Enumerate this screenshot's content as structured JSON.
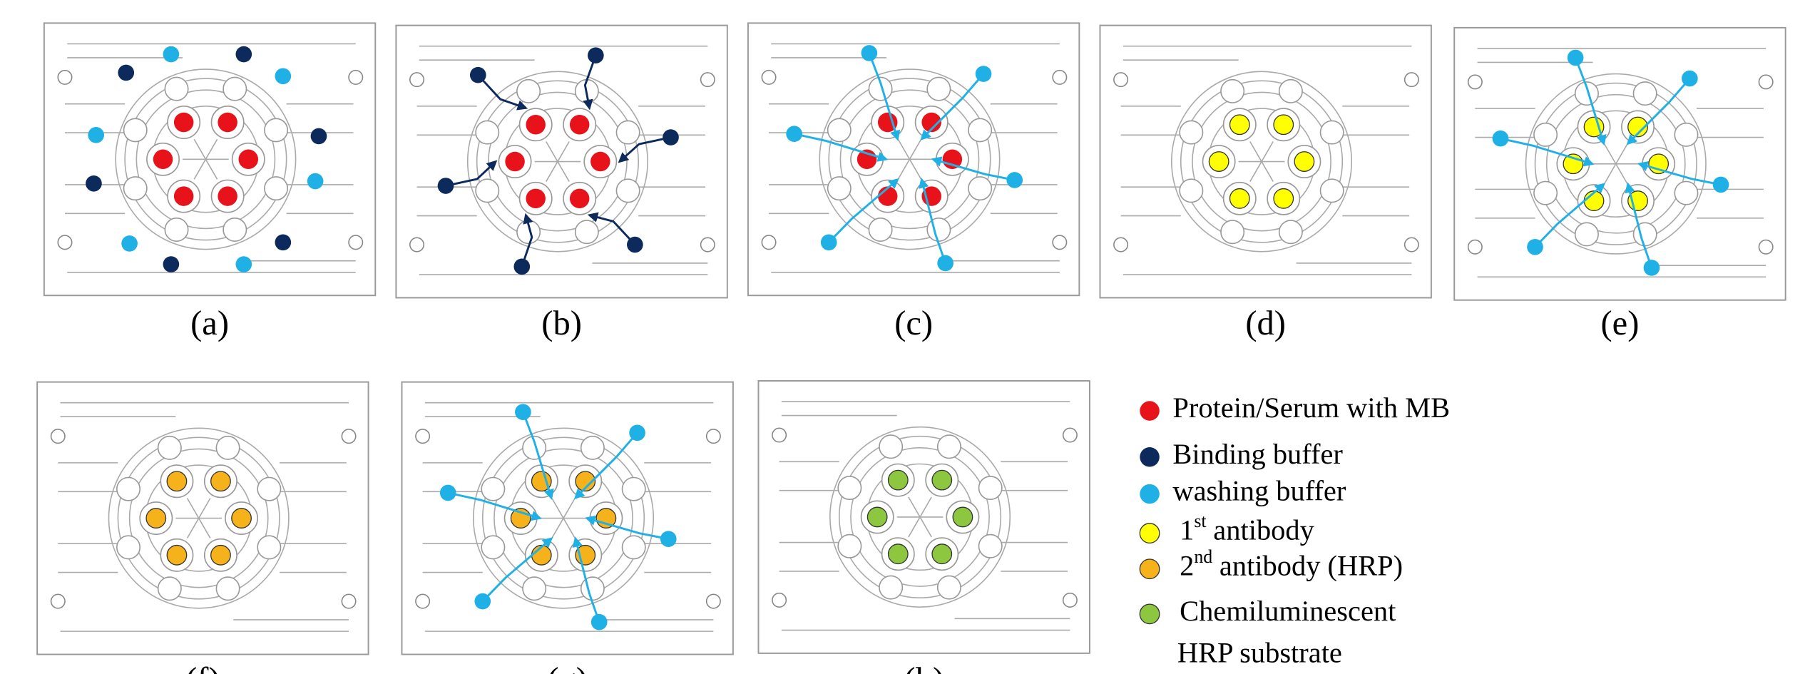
{
  "panels": [
    {
      "label": "(a)"
    },
    {
      "label": "(b)"
    },
    {
      "label": "(c)"
    },
    {
      "label": "(d)"
    },
    {
      "label": "(e)"
    },
    {
      "label": "(f)"
    },
    {
      "label": "(g)"
    },
    {
      "label": "(h)"
    }
  ],
  "legend": [
    {
      "label": "Protein/Serum with MB"
    },
    {
      "label": "Binding buffer"
    },
    {
      "label": "washing buffer"
    },
    {
      "label": "1",
      "superscript": "st",
      "label_end": "antibody"
    },
    {
      "label": "2",
      "superscript": "nd",
      "label_end": "antibody (HRP)"
    },
    {
      "label": "Chemiluminescent",
      "label_line2": "HRP substrate"
    }
  ]
}
